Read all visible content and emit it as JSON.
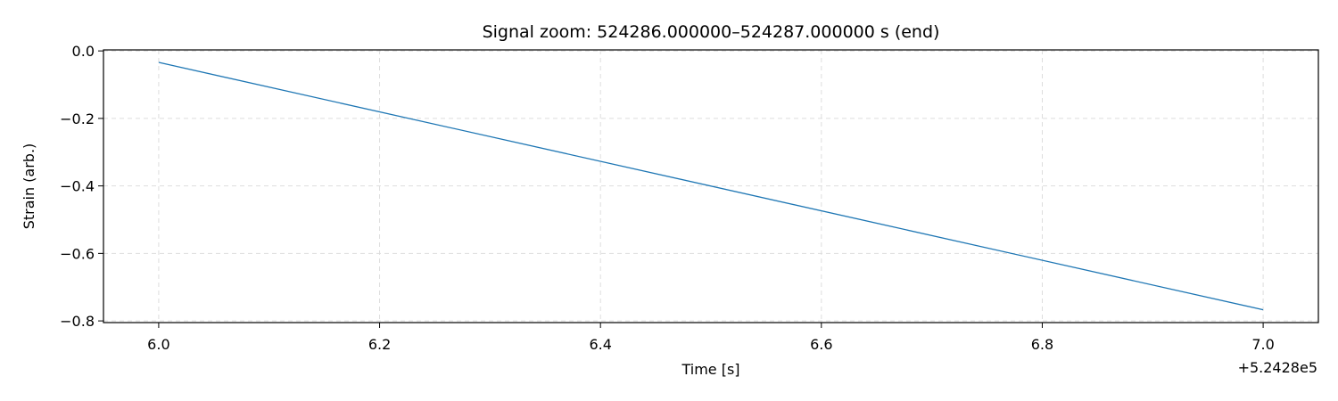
{
  "chart_data": {
    "type": "line",
    "title": "Signal zoom: 524286.000000–524287.000000 s (end)",
    "xlabel": "Time [s]",
    "ylabel": "Strain (arb.)",
    "x_offset_label": "+5.2428e5",
    "x_offset": 524280,
    "xlim": [
      524285.95,
      524287.05
    ],
    "ylim": [
      -0.805,
      0.003
    ],
    "xticks": [
      524286.0,
      524286.2,
      524286.4,
      524286.6,
      524286.8,
      524287.0
    ],
    "xtick_labels": [
      "6.0",
      "6.2",
      "6.4",
      "6.6",
      "6.8",
      "7.0"
    ],
    "yticks": [
      0.0,
      -0.2,
      -0.4,
      -0.6,
      -0.8
    ],
    "ytick_labels": [
      "0.0",
      "−0.2",
      "−0.4",
      "−0.6",
      "−0.8"
    ],
    "grid": true,
    "series": [
      {
        "color": "#1f77b4",
        "x": [
          524286.0,
          524287.0
        ],
        "y": [
          -0.034,
          -0.767
        ]
      }
    ]
  }
}
